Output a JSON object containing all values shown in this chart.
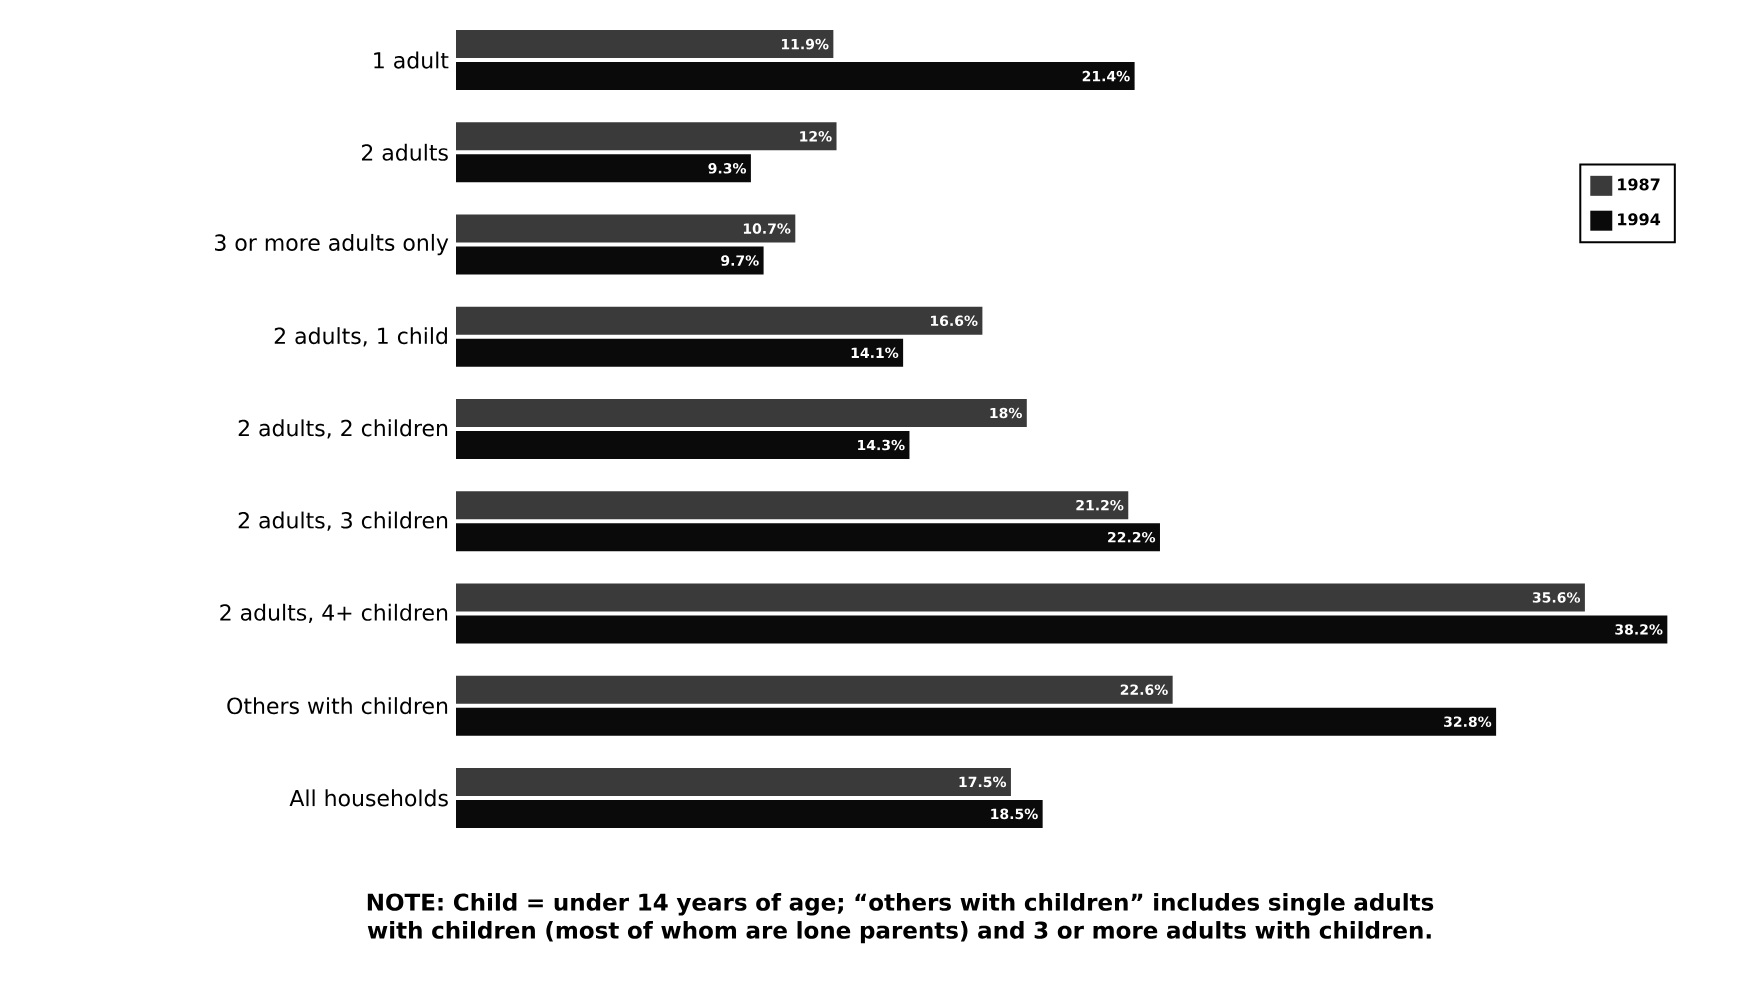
{
  "chart_data": {
    "type": "bar",
    "orientation": "horizontal",
    "categories": [
      "1 adult",
      "2 adults",
      "3 or more adults only",
      "2 adults, 1 child",
      "2 adults, 2 children",
      "2 adults, 3 children",
      "2 adults, 4+ children",
      "Others with children",
      "All households"
    ],
    "series": [
      {
        "name": "1987",
        "color": "#3a3a3a",
        "values": [
          11.9,
          12,
          10.7,
          16.6,
          18,
          21.2,
          35.6,
          22.6,
          17.5
        ],
        "value_labels": [
          "11.9%",
          "12%",
          "10.7%",
          "16.6%",
          "18%",
          "21.2%",
          "35.6%",
          "22.6%",
          "17.5%"
        ]
      },
      {
        "name": "1994",
        "color": "#0a0a0a",
        "values": [
          21.4,
          9.3,
          9.7,
          14.1,
          14.3,
          22.2,
          38.2,
          32.8,
          18.5
        ],
        "value_labels": [
          "21.4%",
          "9.3%",
          "9.7%",
          "14.1%",
          "14.3%",
          "22.2%",
          "38.2%",
          "32.8%",
          "18.5%"
        ]
      }
    ],
    "legend": "top right",
    "annotations": [
      "NOTE: Child = under 14 years of age; “others with children” includes single adults with children (most of whom are lone parents) and 3 or more adults with children."
    ]
  }
}
